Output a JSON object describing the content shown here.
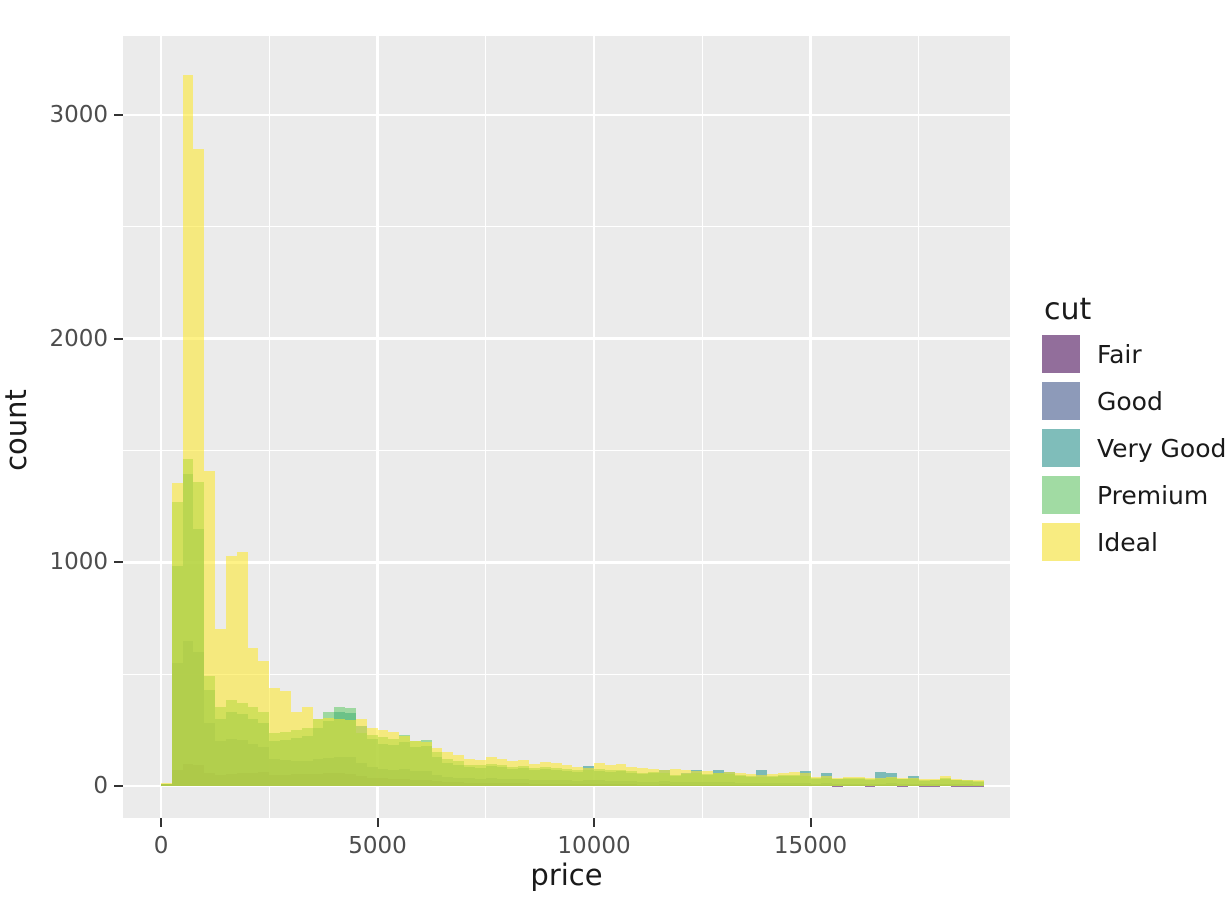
{
  "figure": {
    "background": "#FFFFFF",
    "panel_background": "#EBEBEB",
    "grid_color": "#FFFFFF",
    "tick_mark_color": "#333333",
    "tick_label_color": "#4D4D4D",
    "title_color": "#1A1A1A"
  },
  "chart_data": {
    "type": "bar",
    "subtype": "overlaid-histogram",
    "title": "",
    "xlabel": "price",
    "ylabel": "count",
    "bin_width": 250,
    "bin_start": 0,
    "alpha": 0.55,
    "x_ticks": [
      0,
      5000,
      10000,
      15000
    ],
    "x_tick_labels": [
      "0",
      "5000",
      "10000",
      "15000"
    ],
    "y_ticks": [
      0,
      1000,
      2000,
      3000
    ],
    "y_tick_labels": [
      "0",
      "1000",
      "2000",
      "3000"
    ],
    "x_minor_gridlines": [
      2500,
      7500,
      12500,
      17500
    ],
    "y_minor_gridlines": [
      500,
      1500,
      2500
    ],
    "x_domain": [
      -878,
      19607
    ],
    "y_domain": [
      -143,
      3353
    ],
    "grid": "on",
    "legend": {
      "title": "cut",
      "position": "right",
      "entries": [
        {
          "label": "Fair",
          "color": "#440154"
        },
        {
          "label": "Good",
          "color": "#3B528B"
        },
        {
          "label": "Very Good",
          "color": "#21918C"
        },
        {
          "label": "Premium",
          "color": "#5EC962"
        },
        {
          "label": "Ideal",
          "color": "#FDE725"
        }
      ]
    },
    "series": [
      {
        "name": "Fair",
        "color": "#440154",
        "values": [
          8,
          70,
          100,
          95,
          60,
          50,
          55,
          58,
          60,
          62,
          48,
          50,
          52,
          54,
          55,
          56,
          58,
          55,
          45,
          38,
          34,
          32,
          33,
          28,
          28,
          22,
          18,
          16,
          14,
          13,
          14,
          13,
          12,
          12,
          11,
          11,
          10,
          9,
          8,
          9,
          9,
          8,
          8,
          7,
          6,
          6,
          7,
          5,
          5,
          6,
          5,
          6,
          5,
          4,
          4,
          4,
          4,
          4,
          4,
          4,
          3,
          3,
          2,
          3,
          3,
          2,
          3,
          3,
          2,
          3,
          2,
          2,
          3,
          2,
          2,
          2
        ]
      },
      {
        "name": "Good",
        "color": "#3B528B",
        "values": [
          9,
          550,
          650,
          600,
          280,
          200,
          210,
          205,
          190,
          175,
          120,
          115,
          110,
          112,
          120,
          125,
          130,
          128,
          105,
          85,
          75,
          72,
          74,
          65,
          66,
          50,
          42,
          38,
          34,
          33,
          35,
          33,
          30,
          31,
          28,
          29,
          27,
          25,
          23,
          25,
          26,
          24,
          24,
          22,
          20,
          20,
          22,
          16,
          18,
          20,
          16,
          19,
          18,
          15,
          13,
          15,
          13,
          14,
          15,
          14,
          10,
          12,
          9,
          10,
          10,
          8,
          11,
          12,
          9,
          10,
          7,
          8,
          10,
          8,
          7,
          6
        ]
      },
      {
        "name": "Very Good",
        "color": "#21918C",
        "values": [
          10,
          985,
          1395,
          1150,
          430,
          300,
          330,
          320,
          300,
          280,
          200,
          205,
          215,
          225,
          260,
          290,
          330,
          325,
          270,
          210,
          190,
          185,
          195,
          175,
          180,
          130,
          105,
          95,
          85,
          82,
          88,
          84,
          75,
          80,
          72,
          76,
          72,
          68,
          64,
          90,
          68,
          64,
          66,
          60,
          55,
          58,
          72,
          46,
          60,
          72,
          48,
          72,
          62,
          46,
          42,
          70,
          42,
          44,
          46,
          68,
          32,
          59,
          30,
          32,
          31,
          28,
          62,
          60,
          30,
          44,
          24,
          26,
          33,
          26,
          23,
          20
        ]
      },
      {
        "name": "Premium",
        "color": "#5EC962",
        "values": [
          11,
          1271,
          1460,
          1360,
          490,
          353,
          383,
          370,
          352,
          331,
          236,
          240,
          250,
          260,
          300,
          330,
          355,
          350,
          237,
          230,
          218,
          210,
          228,
          200,
          205,
          150,
          120,
          110,
          95,
          93,
          100,
          95,
          85,
          90,
          80,
          85,
          80,
          75,
          70,
          70,
          75,
          70,
          72,
          65,
          60,
          62,
          60,
          50,
          55,
          58,
          52,
          60,
          55,
          50,
          45,
          42,
          45,
          48,
          50,
          45,
          35,
          38,
          32,
          35,
          34,
          30,
          32,
          35,
          33,
          32,
          26,
          28,
          36,
          28,
          25,
          22
        ]
      },
      {
        "name": "Ideal",
        "color": "#FDE725",
        "values": [
          12,
          1355,
          3180,
          2850,
          1410,
          700,
          1030,
          1045,
          615,
          560,
          437,
          423,
          331,
          352,
          300,
          302,
          300,
          295,
          300,
          260,
          250,
          240,
          225,
          200,
          195,
          172,
          153,
          138,
          123,
          116,
          130,
          123,
          110,
          116,
          100,
          107,
          105,
          95,
          85,
          80,
          105,
          95,
          98,
          85,
          80,
          78,
          70,
          75,
          72,
          66,
          68,
          58,
          64,
          60,
          55,
          50,
          55,
          60,
          64,
          57,
          41,
          45,
          37,
          41,
          40,
          35,
          38,
          40,
          38,
          38,
          30,
          33,
          44,
          33,
          28,
          25
        ]
      }
    ]
  }
}
